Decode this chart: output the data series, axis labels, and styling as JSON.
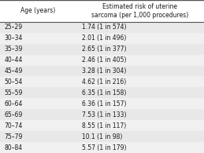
{
  "col1_header": "Age (years)",
  "col2_header": "Estimated risk of uterine\nsarcoma (per 1,000 procedures)",
  "rows": [
    [
      "25–29",
      "1.74 (1 in 574)"
    ],
    [
      "30–34",
      "2.01 (1 in 496)"
    ],
    [
      "35–39",
      "2.65 (1 in 377)"
    ],
    [
      "40–44",
      "2.46 (1 in 405)"
    ],
    [
      "45–49",
      "3.28 (1 in 304)"
    ],
    [
      "50–54",
      "4.62 (1 in 216)"
    ],
    [
      "55–59",
      "6.35 (1 in 158)"
    ],
    [
      "60–64",
      "6.36 (1 in 157)"
    ],
    [
      "65–69",
      "7.53 (1 in 133)"
    ],
    [
      "70–74",
      "8.55 (1 in 117)"
    ],
    [
      "75–79",
      "10.1 (1 in 98)"
    ],
    [
      "80–84",
      "5.57 (1 in 179)"
    ]
  ],
  "bg_color_even": "#e8e8e8",
  "bg_color_odd": "#f0f0f0",
  "header_bg": "#ffffff",
  "text_color": "#1a1a1a",
  "figsize": [
    2.59,
    1.95
  ],
  "dpi": 100,
  "col_split": 0.37,
  "font_size": 5.5
}
